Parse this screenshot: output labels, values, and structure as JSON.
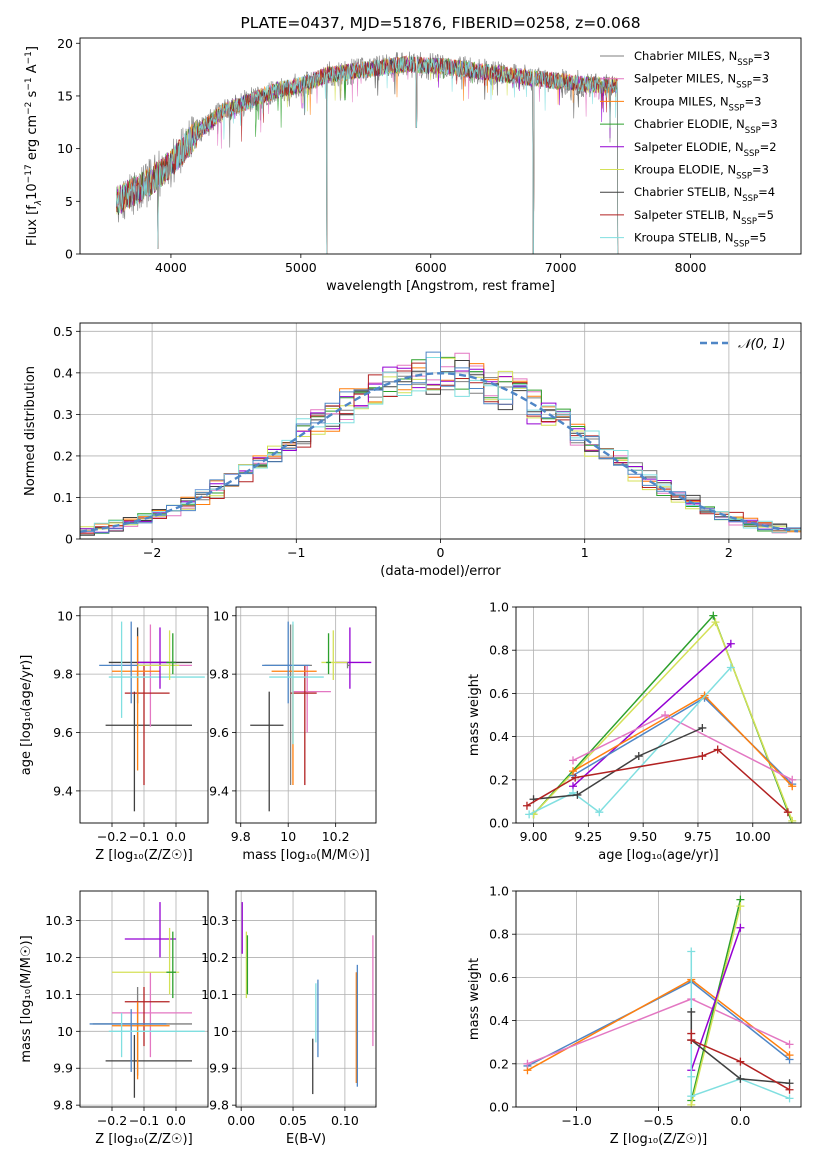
{
  "chart_data": [
    {
      "id": "spectrum",
      "type": "line",
      "title": "PLATE=0437, MJD=51876, FIBERID=0258, z=0.068",
      "xlabel": "wavelength [Angstrom, rest frame]",
      "ylabel_parts": [
        "Flux [f",
        "λ",
        "10",
        "−17",
        " erg cm",
        "−2",
        " s",
        "−1",
        " A",
        "−1",
        "]"
      ],
      "xlim": [
        3300,
        8850
      ],
      "ylim": [
        0,
        20.5
      ],
      "xticks": [
        4000,
        5000,
        6000,
        7000,
        8000
      ],
      "yticks": [
        0,
        5,
        10,
        15,
        20
      ],
      "grid": false,
      "legend_position": "upper right",
      "legend": [
        {
          "prefix": "Chabrier MILES, N",
          "sub": "SSP",
          "suffix": "=3",
          "color": "#7f7f7f"
        },
        {
          "prefix": "Salpeter MILES, N",
          "sub": "SSP",
          "suffix": "=3",
          "color": "#e377c2"
        },
        {
          "prefix": "Kroupa MILES, N",
          "sub": "SSP",
          "suffix": "=3",
          "color": "#ff7f0e"
        },
        {
          "prefix": "Chabrier ELODIE, N",
          "sub": "SSP",
          "suffix": "=3",
          "color": "#2ca02c"
        },
        {
          "prefix": "Salpeter ELODIE, N",
          "sub": "SSP",
          "suffix": "=2",
          "color": "#9400d3"
        },
        {
          "prefix": "Kroupa ELODIE, N",
          "sub": "SSP",
          "suffix": "=3",
          "color": "#d4e157"
        },
        {
          "prefix": "Chabrier STELIB, N",
          "sub": "SSP",
          "suffix": "=4",
          "color": "#404040"
        },
        {
          "prefix": "Salpeter STELIB, N",
          "sub": "SSP",
          "suffix": "=5",
          "color": "#b22222"
        },
        {
          "prefix": "Kroupa STELIB, N",
          "sub": "SSP",
          "suffix": "=5",
          "color": "#80dfe0"
        }
      ],
      "continuum": {
        "x": [
          3580,
          3800,
          4000,
          4200,
          4400,
          4600,
          4800,
          5000,
          5200,
          5500,
          5800,
          6100,
          6400,
          6700,
          7000,
          7200,
          7440
        ],
        "y": [
          5,
          6.5,
          8.5,
          11.5,
          13.5,
          14.5,
          15.5,
          16,
          17,
          17.5,
          18,
          17.8,
          17.3,
          16.8,
          16.4,
          16.1,
          16
        ]
      },
      "features": [
        {
          "x": 3900,
          "y": 0.5
        },
        {
          "x": 5200,
          "y": 0
        },
        {
          "x": 5890,
          "y": 12
        },
        {
          "x": 6790,
          "y": 0
        },
        {
          "x": 7380,
          "y": 12
        },
        {
          "x": 7440,
          "y": 0
        }
      ]
    },
    {
      "id": "residuals",
      "type": "line",
      "xlabel": "(data-model)/error",
      "ylabel": "Normed distribution",
      "xlim": [
        -2.5,
        2.5
      ],
      "ylim": [
        0,
        0.52
      ],
      "xticks": [
        -2,
        -1,
        0,
        1,
        2
      ],
      "yticks": [
        0,
        0.1,
        0.2,
        0.3,
        0.4,
        0.5
      ],
      "grid": true,
      "legend_position": "upper right",
      "legend": [
        {
          "label": "𝒩(0, 1)",
          "color": "#4f86c6"
        }
      ],
      "bin_width": 0.1,
      "curve": {
        "name": "𝒩(0, 1)",
        "mean": 0,
        "std": 1,
        "color": "#4f86c6"
      },
      "histogram_colors": [
        "#7f7f7f",
        "#e377c2",
        "#ff7f0e",
        "#2ca02c",
        "#9400d3",
        "#d4e157",
        "#404040",
        "#b22222",
        "#80dfe0",
        "#4f86c6"
      ]
    },
    {
      "id": "age_vs_Z",
      "type": "scatter",
      "xlabel": "Z [log₁₀(Z/Z☉)]",
      "ylabel": "age  [log₁₀(age/yr)]",
      "xlim": [
        -0.3,
        0.1
      ],
      "ylim": [
        9.29,
        10.03
      ],
      "xticks": [
        -0.2,
        -0.1,
        0.0
      ],
      "xticklabels": [
        "−0.2",
        "−0.1",
        "0.0"
      ],
      "yticks": [
        9.4,
        9.6,
        9.8,
        10.0
      ],
      "grid": true,
      "points": [
        {
          "x": -0.13,
          "y": 9.625,
          "xlo": -0.22,
          "xhi": 0.05,
          "ylo": 9.33,
          "yhi": 9.74,
          "color": "#404040"
        },
        {
          "x": -0.12,
          "y": 9.84,
          "xlo": -0.21,
          "xhi": 0.05,
          "ylo": 9.7,
          "yhi": 9.96,
          "color": "#404040"
        },
        {
          "x": -0.08,
          "y": 9.83,
          "xlo": -0.2,
          "xhi": 0.05,
          "ylo": 9.62,
          "yhi": 9.97,
          "color": "#e377c2"
        },
        {
          "x": -0.1,
          "y": 9.735,
          "xlo": -0.16,
          "xhi": -0.02,
          "ylo": 9.42,
          "yhi": 9.83,
          "color": "#b22222"
        },
        {
          "x": -0.12,
          "y": 9.81,
          "xlo": -0.2,
          "xhi": -0.05,
          "ylo": 9.47,
          "yhi": 9.93,
          "color": "#ff7f0e"
        },
        {
          "x": -0.14,
          "y": 9.83,
          "xlo": -0.24,
          "xhi": -0.03,
          "ylo": 9.7,
          "yhi": 9.98,
          "color": "#4f86c6"
        },
        {
          "x": -0.17,
          "y": 9.79,
          "xlo": -0.21,
          "xhi": 0.09,
          "ylo": 9.65,
          "yhi": 9.98,
          "color": "#80dfe0"
        },
        {
          "x": -0.05,
          "y": 9.84,
          "xlo": -0.12,
          "xhi": 0.0,
          "ylo": 9.75,
          "yhi": 9.96,
          "color": "#9400d3"
        },
        {
          "x": -0.02,
          "y": 9.83,
          "xlo": -0.12,
          "xhi": 0.01,
          "ylo": 9.78,
          "yhi": 9.95,
          "color": "#d4e157"
        },
        {
          "x": -0.01,
          "y": 9.84,
          "xlo": -0.03,
          "xhi": 0.0,
          "ylo": 9.8,
          "yhi": 9.94,
          "color": "#2ca02c"
        }
      ]
    },
    {
      "id": "age_vs_mass",
      "type": "scatter",
      "xlabel": "mass [log₁₀(M/M☉)]",
      "xlim": [
        9.78,
        10.37
      ],
      "ylim": [
        9.29,
        10.03
      ],
      "xticks": [
        9.8,
        10.0,
        10.2
      ],
      "yticks": [
        9.4,
        9.6,
        9.8,
        10.0
      ],
      "grid": true,
      "points": [
        {
          "x": 9.92,
          "y": 9.625,
          "xlo": 9.84,
          "xhi": 9.98,
          "ylo": 9.33,
          "yhi": 9.74,
          "color": "#404040"
        },
        {
          "x": 10.01,
          "y": 9.83,
          "xlo": 9.9,
          "xhi": 10.1,
          "ylo": 9.42,
          "yhi": 9.97,
          "color": "#7f7f7f"
        },
        {
          "x": 10.08,
          "y": 9.74,
          "xlo": 10.02,
          "xhi": 10.18,
          "ylo": 9.6,
          "yhi": 9.83,
          "color": "#e377c2"
        },
        {
          "x": 10.07,
          "y": 9.735,
          "xlo": 10.01,
          "xhi": 10.12,
          "ylo": 9.42,
          "yhi": 9.83,
          "color": "#b22222"
        },
        {
          "x": 10.02,
          "y": 9.81,
          "xlo": 9.93,
          "xhi": 10.12,
          "ylo": 9.42,
          "yhi": 9.97,
          "color": "#ff7f0e"
        },
        {
          "x": 10.0,
          "y": 9.83,
          "xlo": 9.89,
          "xhi": 10.09,
          "ylo": 9.7,
          "yhi": 9.98,
          "color": "#4f86c6"
        },
        {
          "x": 10.02,
          "y": 9.79,
          "xlo": 9.92,
          "xhi": 10.15,
          "ylo": 9.56,
          "yhi": 9.98,
          "color": "#80dfe0"
        },
        {
          "x": 10.26,
          "y": 9.84,
          "xlo": 10.2,
          "xhi": 10.35,
          "ylo": 9.75,
          "yhi": 9.96,
          "color": "#9400d3"
        },
        {
          "x": 10.19,
          "y": 9.84,
          "xlo": 10.14,
          "xhi": 10.25,
          "ylo": 9.78,
          "yhi": 9.95,
          "color": "#d4e157"
        },
        {
          "x": 10.17,
          "y": 9.84,
          "xlo": 10.16,
          "xhi": 10.18,
          "ylo": 9.8,
          "yhi": 9.94,
          "color": "#2ca02c"
        },
        {
          "x": 10.25,
          "y": 9.83,
          "xlo": 10.25,
          "xhi": 10.26,
          "ylo": 9.82,
          "yhi": 9.84,
          "color": "#7f7f7f"
        }
      ]
    },
    {
      "id": "weight_vs_age",
      "type": "line",
      "xlabel": "age  [log₁₀(age/yr)]",
      "ylabel": "mass weight",
      "xlim": [
        8.92,
        10.22
      ],
      "ylim": [
        0,
        1
      ],
      "xticks": [
        9.0,
        9.25,
        9.5,
        9.75,
        10.0
      ],
      "xticklabels": [
        "9.00",
        "9.25",
        "9.50",
        "9.75",
        "10.00"
      ],
      "yticks": [
        0,
        0.2,
        0.4,
        0.6,
        0.8,
        1.0
      ],
      "yticklabels": [
        "0.0",
        "0.2",
        "0.4",
        "0.6",
        "0.8",
        "1.0"
      ],
      "grid": true,
      "series": [
        {
          "color": "#2ca02c",
          "x": [
            9.0,
            9.82,
            10.18
          ],
          "y": [
            0.04,
            0.96,
            0.0
          ]
        },
        {
          "color": "#d4e157",
          "x": [
            9.0,
            9.83,
            10.18
          ],
          "y": [
            0.04,
            0.93,
            0.01
          ]
        },
        {
          "color": "#9400d3",
          "x": [
            9.18,
            9.9
          ],
          "y": [
            0.17,
            0.83
          ]
        },
        {
          "color": "#4f86c6",
          "x": [
            9.18,
            9.78,
            10.18
          ],
          "y": [
            0.22,
            0.58,
            0.18
          ]
        },
        {
          "color": "#ff7f0e",
          "x": [
            9.18,
            9.78,
            10.18
          ],
          "y": [
            0.24,
            0.59,
            0.17
          ]
        },
        {
          "color": "#e377c2",
          "x": [
            9.18,
            9.6,
            10.18
          ],
          "y": [
            0.29,
            0.5,
            0.2
          ]
        },
        {
          "color": "#80dfe0",
          "x": [
            8.98,
            9.18,
            9.3,
            9.9
          ],
          "y": [
            0.04,
            0.14,
            0.05,
            0.72
          ]
        },
        {
          "color": "#404040",
          "x": [
            9.0,
            9.2,
            9.48,
            9.77
          ],
          "y": [
            0.11,
            0.13,
            0.31,
            0.44
          ]
        },
        {
          "color": "#b22222",
          "x": [
            8.97,
            9.19,
            9.77,
            9.84,
            10.16
          ],
          "y": [
            0.08,
            0.21,
            0.31,
            0.34,
            0.05
          ]
        }
      ]
    },
    {
      "id": "mass_vs_Z",
      "type": "scatter",
      "xlabel": "Z [log₁₀(Z/Z☉)]",
      "ylabel": "mass [log₁₀(M/M☉)]",
      "xlim": [
        -0.3,
        0.1
      ],
      "ylim": [
        9.795,
        10.38
      ],
      "xticks": [
        -0.2,
        -0.1,
        0.0
      ],
      "xticklabels": [
        "−0.2",
        "−0.1",
        "0.0"
      ],
      "yticks": [
        9.8,
        9.9,
        10.0,
        10.1,
        10.2,
        10.3
      ],
      "grid": true,
      "points": [
        {
          "x": -0.13,
          "y": 9.92,
          "xlo": -0.22,
          "xhi": 0.05,
          "ylo": 9.82,
          "yhi": 9.99,
          "color": "#404040"
        },
        {
          "x": -0.12,
          "y": 10.02,
          "xlo": -0.26,
          "xhi": 0.05,
          "ylo": 9.88,
          "yhi": 10.12,
          "color": "#7f7f7f"
        },
        {
          "x": -0.08,
          "y": 10.05,
          "xlo": -0.2,
          "xhi": 0.05,
          "ylo": 9.93,
          "yhi": 10.16,
          "color": "#e377c2"
        },
        {
          "x": -0.1,
          "y": 10.08,
          "xlo": -0.16,
          "xhi": -0.02,
          "ylo": 9.96,
          "yhi": 10.12,
          "color": "#b22222"
        },
        {
          "x": -0.12,
          "y": 10.015,
          "xlo": -0.2,
          "xhi": -0.02,
          "ylo": 9.87,
          "yhi": 10.08,
          "color": "#ff7f0e"
        },
        {
          "x": -0.14,
          "y": 10.02,
          "xlo": -0.27,
          "xhi": -0.03,
          "ylo": 9.89,
          "yhi": 10.06,
          "color": "#4f86c6"
        },
        {
          "x": -0.17,
          "y": 10.0,
          "xlo": -0.21,
          "xhi": 0.09,
          "ylo": 9.93,
          "yhi": 10.05,
          "color": "#80dfe0"
        },
        {
          "x": -0.05,
          "y": 10.25,
          "xlo": -0.16,
          "xhi": 0.0,
          "ylo": 10.2,
          "yhi": 10.35,
          "color": "#9400d3"
        },
        {
          "x": -0.02,
          "y": 10.16,
          "xlo": -0.2,
          "xhi": 0.01,
          "ylo": 10.1,
          "yhi": 10.28,
          "color": "#d4e157"
        },
        {
          "x": -0.01,
          "y": 10.16,
          "xlo": -0.03,
          "xhi": 0.0,
          "ylo": 10.09,
          "yhi": 10.27,
          "color": "#2ca02c"
        }
      ]
    },
    {
      "id": "mass_vs_EBV",
      "type": "scatter",
      "xlabel": "E(B-V)",
      "xlim": [
        -0.005,
        0.13
      ],
      "ylim": [
        9.795,
        10.38
      ],
      "xticks": [
        0.0,
        0.05,
        0.1
      ],
      "xticklabels": [
        "0.00",
        "0.05",
        "0.10"
      ],
      "yticks": [
        9.8,
        9.9,
        10.0,
        10.1,
        10.2,
        10.3
      ],
      "grid": true,
      "points": [
        {
          "x": 0.001,
          "y": 10.28,
          "xlo": 0.001,
          "xhi": 0.001,
          "ylo": 10.21,
          "yhi": 10.35,
          "color": "#9400d3"
        },
        {
          "x": 0.005,
          "y": 10.18,
          "xlo": 0.005,
          "xhi": 0.005,
          "ylo": 10.09,
          "yhi": 10.27,
          "color": "#d4e157"
        },
        {
          "x": 0.006,
          "y": 10.18,
          "xlo": 0.006,
          "xhi": 0.006,
          "ylo": 10.1,
          "yhi": 10.26,
          "color": "#2ca02c"
        },
        {
          "x": 0.069,
          "y": 9.9,
          "xlo": 0.069,
          "xhi": 0.069,
          "ylo": 9.83,
          "yhi": 9.98,
          "color": "#404040"
        },
        {
          "x": 0.072,
          "y": 10.05,
          "xlo": 0.072,
          "xhi": 0.072,
          "ylo": 9.97,
          "yhi": 10.13,
          "color": "#80dfe0"
        },
        {
          "x": 0.074,
          "y": 10.05,
          "xlo": 0.074,
          "xhi": 0.074,
          "ylo": 9.93,
          "yhi": 10.14,
          "color": "#4f86c6"
        },
        {
          "x": 0.111,
          "y": 10.01,
          "xlo": 0.111,
          "xhi": 0.111,
          "ylo": 9.86,
          "yhi": 10.16,
          "color": "#ff7f0e"
        },
        {
          "x": 0.112,
          "y": 10.02,
          "xlo": 0.112,
          "xhi": 0.112,
          "ylo": 9.85,
          "yhi": 10.18,
          "color": "#4f86c6"
        },
        {
          "x": 0.127,
          "y": 10.11,
          "xlo": 0.127,
          "xhi": 0.127,
          "ylo": 9.96,
          "yhi": 10.26,
          "color": "#e377c2"
        }
      ]
    },
    {
      "id": "weight_vs_Z",
      "type": "line",
      "xlabel": "Z [log₁₀(Z/Z☉)]",
      "ylabel": "mass weight",
      "xlim": [
        -1.37,
        0.37
      ],
      "ylim": [
        0,
        1
      ],
      "xticks": [
        -1.0,
        -0.5,
        0.0
      ],
      "xticklabels": [
        "−1.0",
        "−0.5",
        "0.0"
      ],
      "yticks": [
        0,
        0.2,
        0.4,
        0.6,
        0.8,
        1.0
      ],
      "yticklabels": [
        "0.0",
        "0.2",
        "0.4",
        "0.6",
        "0.8",
        "1.0"
      ],
      "grid": true,
      "series": [
        {
          "color": "#4f86c6",
          "x": [
            -1.3,
            -0.3,
            0.3
          ],
          "y": [
            0.19,
            0.58,
            0.22
          ]
        },
        {
          "color": "#ff7f0e",
          "x": [
            -1.3,
            -0.3,
            0.3
          ],
          "y": [
            0.17,
            0.59,
            0.24
          ]
        },
        {
          "color": "#e377c2",
          "x": [
            -1.3,
            -0.3,
            0.3
          ],
          "y": [
            0.2,
            0.5,
            0.29
          ]
        },
        {
          "color": "#2ca02c",
          "x": [
            -0.3,
            0.0
          ],
          "y": [
            0.03,
            0.96
          ]
        },
        {
          "color": "#d4e157",
          "x": [
            -0.3,
            0.0
          ],
          "y": [
            0.01,
            0.93
          ]
        },
        {
          "color": "#9400d3",
          "x": [
            -0.3,
            0.0
          ],
          "y": [
            0.17,
            0.83
          ]
        },
        {
          "color": "#80dfe0",
          "x": [
            -0.3,
            -0.3,
            -0.3,
            0.0,
            0.3
          ],
          "y": [
            0.72,
            0.14,
            0.05,
            0.13,
            0.04
          ]
        },
        {
          "color": "#404040",
          "x": [
            -0.3,
            -0.3,
            0.0,
            0.3
          ],
          "y": [
            0.44,
            0.31,
            0.13,
            0.11
          ]
        },
        {
          "color": "#b22222",
          "x": [
            -0.3,
            -0.3,
            0.0,
            0.3
          ],
          "y": [
            0.34,
            0.31,
            0.21,
            0.08
          ]
        }
      ]
    }
  ]
}
